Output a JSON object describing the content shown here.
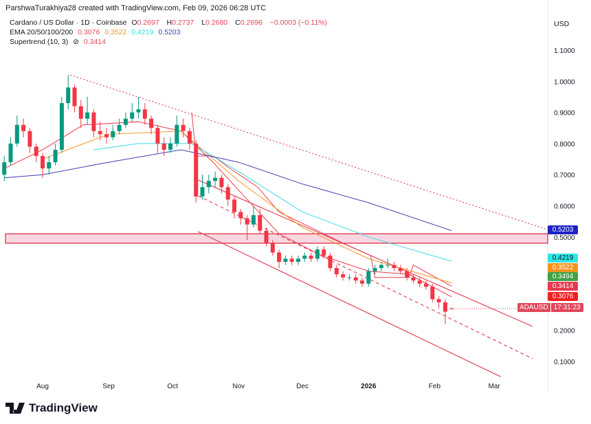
{
  "header": {
    "credit": "ParshwaTurakhiya28 created with TradingView.com, Feb 09, 2026 06:28 UTC",
    "currency": "USD"
  },
  "legend": {
    "symbol": "Cardano / US Dollar · 1D · Coinbase",
    "o_label": "O",
    "o": "0.2697",
    "h_label": "H",
    "h": "0.2737",
    "l_label": "L",
    "l": "0.2680",
    "c_label": "C",
    "c": "0.2696",
    "change": "−0.0003 (−0.11%)",
    "ema_label": "EMA 20/50/100/200",
    "ema20": "0.3076",
    "ema50": "0.3522",
    "ema100": "0.4219",
    "ema200": "0.5203",
    "supertrend_label": "Supertrend (10, 3)",
    "supertrend_icon": "eye-off-icon",
    "supertrend": "0.3414"
  },
  "price_labels": {
    "ema200": {
      "text": "0.5203",
      "color": "#1e22c8"
    },
    "ema100": {
      "text": "0.4219",
      "color": "#2ee6e6"
    },
    "ema50": {
      "text": "0.3522",
      "color": "#f7931a"
    },
    "supertrend_up": {
      "text": "0.3494",
      "color": "#43a047"
    },
    "supertrend": {
      "text": "0.3414",
      "color": "#e53950"
    },
    "ema20": {
      "text": "0.3076",
      "color": "#f21f1f"
    },
    "symbol": {
      "text": "ADAUSD",
      "countdown": "17:31:23",
      "color": "#e0475a"
    }
  },
  "branding": {
    "logo_text": "TradingView"
  },
  "chart_data": {
    "type": "candlestick",
    "title": "Cardano / US Dollar · 1D · Coinbase",
    "y_ticks": [
      "1.1000",
      "1.0000",
      "0.9000",
      "0.8000",
      "0.7000",
      "0.6000",
      "0.5000",
      "0.2000",
      "0.1000"
    ],
    "y_tick_values": [
      1.1,
      1.0,
      0.9,
      0.8,
      0.7,
      0.6,
      0.5,
      0.2,
      0.1
    ],
    "x_ticks": [
      {
        "label": "Aug",
        "date": "2025-08-01"
      },
      {
        "label": "Sep",
        "date": "2025-09-01"
      },
      {
        "label": "Oct",
        "date": "2025-10-01"
      },
      {
        "label": "Nov",
        "date": "2025-11-01"
      },
      {
        "label": "Dec",
        "date": "2025-12-01"
      },
      {
        "label": "2026",
        "date": "2026-01-01",
        "bold": true
      },
      {
        "label": "Feb",
        "date": "2026-02-01"
      },
      {
        "label": "Mar",
        "date": "2026-03-01"
      }
    ],
    "ylim": [
      0.02,
      1.13
    ],
    "up_color": "#089981",
    "down_color": "#f23645",
    "candles": [
      [
        "2025-07-14",
        0.7,
        0.76,
        0.68,
        0.74
      ],
      [
        "2025-07-17",
        0.74,
        0.82,
        0.73,
        0.8
      ],
      [
        "2025-07-20",
        0.8,
        0.89,
        0.79,
        0.86
      ],
      [
        "2025-07-23",
        0.86,
        0.88,
        0.82,
        0.84
      ],
      [
        "2025-07-26",
        0.84,
        0.85,
        0.77,
        0.79
      ],
      [
        "2025-07-29",
        0.79,
        0.8,
        0.74,
        0.76
      ],
      [
        "2025-08-01",
        0.76,
        0.77,
        0.69,
        0.72
      ],
      [
        "2025-08-04",
        0.72,
        0.76,
        0.7,
        0.74
      ],
      [
        "2025-08-07",
        0.74,
        0.8,
        0.73,
        0.78
      ],
      [
        "2025-08-10",
        0.78,
        0.95,
        0.77,
        0.93
      ],
      [
        "2025-08-13",
        0.93,
        1.02,
        0.91,
        0.98
      ],
      [
        "2025-08-16",
        0.98,
        0.99,
        0.9,
        0.92
      ],
      [
        "2025-08-19",
        0.92,
        0.94,
        0.85,
        0.88
      ],
      [
        "2025-08-22",
        0.88,
        0.95,
        0.86,
        0.9
      ],
      [
        "2025-08-25",
        0.9,
        0.91,
        0.82,
        0.84
      ],
      [
        "2025-08-28",
        0.84,
        0.87,
        0.81,
        0.83
      ],
      [
        "2025-08-31",
        0.83,
        0.85,
        0.8,
        0.82
      ],
      [
        "2025-09-03",
        0.82,
        0.86,
        0.81,
        0.84
      ],
      [
        "2025-09-06",
        0.84,
        0.88,
        0.83,
        0.86
      ],
      [
        "2025-09-09",
        0.86,
        0.9,
        0.85,
        0.88
      ],
      [
        "2025-09-12",
        0.88,
        0.93,
        0.87,
        0.9
      ],
      [
        "2025-09-15",
        0.9,
        0.95,
        0.88,
        0.91
      ],
      [
        "2025-09-18",
        0.91,
        0.93,
        0.86,
        0.88
      ],
      [
        "2025-09-21",
        0.88,
        0.89,
        0.83,
        0.85
      ],
      [
        "2025-09-24",
        0.85,
        0.86,
        0.77,
        0.8
      ],
      [
        "2025-09-27",
        0.8,
        0.82,
        0.76,
        0.78
      ],
      [
        "2025-09-30",
        0.78,
        0.82,
        0.77,
        0.8
      ],
      [
        "2025-10-03",
        0.8,
        0.89,
        0.79,
        0.86
      ],
      [
        "2025-10-06",
        0.86,
        0.88,
        0.82,
        0.84
      ],
      [
        "2025-10-09",
        0.84,
        0.85,
        0.78,
        0.8
      ],
      [
        "2025-10-12",
        0.8,
        0.81,
        0.61,
        0.63
      ],
      [
        "2025-10-15",
        0.63,
        0.7,
        0.62,
        0.66
      ],
      [
        "2025-10-18",
        0.66,
        0.7,
        0.64,
        0.68
      ],
      [
        "2025-10-21",
        0.68,
        0.71,
        0.66,
        0.69
      ],
      [
        "2025-10-24",
        0.69,
        0.7,
        0.64,
        0.66
      ],
      [
        "2025-10-27",
        0.66,
        0.67,
        0.6,
        0.62
      ],
      [
        "2025-10-30",
        0.62,
        0.63,
        0.56,
        0.58
      ],
      [
        "2025-11-02",
        0.58,
        0.59,
        0.54,
        0.56
      ],
      [
        "2025-11-05",
        0.56,
        0.57,
        0.49,
        0.54
      ],
      [
        "2025-11-08",
        0.54,
        0.6,
        0.53,
        0.57
      ],
      [
        "2025-11-11",
        0.57,
        0.59,
        0.51,
        0.52
      ],
      [
        "2025-11-14",
        0.52,
        0.53,
        0.47,
        0.48
      ],
      [
        "2025-11-17",
        0.48,
        0.49,
        0.44,
        0.45
      ],
      [
        "2025-11-20",
        0.45,
        0.46,
        0.4,
        0.42
      ],
      [
        "2025-11-23",
        0.42,
        0.44,
        0.41,
        0.43
      ],
      [
        "2025-11-26",
        0.43,
        0.44,
        0.41,
        0.42
      ],
      [
        "2025-11-29",
        0.42,
        0.44,
        0.41,
        0.43
      ],
      [
        "2025-12-02",
        0.43,
        0.45,
        0.42,
        0.44
      ],
      [
        "2025-12-05",
        0.44,
        0.45,
        0.42,
        0.43
      ],
      [
        "2025-12-08",
        0.43,
        0.47,
        0.42,
        0.46
      ],
      [
        "2025-12-11",
        0.46,
        0.47,
        0.43,
        0.44
      ],
      [
        "2025-12-14",
        0.44,
        0.45,
        0.39,
        0.4
      ],
      [
        "2025-12-17",
        0.4,
        0.41,
        0.37,
        0.38
      ],
      [
        "2025-12-20",
        0.38,
        0.39,
        0.36,
        0.37
      ],
      [
        "2025-12-23",
        0.37,
        0.38,
        0.36,
        0.37
      ],
      [
        "2025-12-26",
        0.37,
        0.38,
        0.35,
        0.36
      ],
      [
        "2025-12-29",
        0.36,
        0.37,
        0.34,
        0.35
      ],
      [
        "2026-01-01",
        0.35,
        0.4,
        0.34,
        0.39
      ],
      [
        "2026-01-04",
        0.39,
        0.41,
        0.38,
        0.4
      ],
      [
        "2026-01-07",
        0.4,
        0.42,
        0.39,
        0.41
      ],
      [
        "2026-01-10",
        0.41,
        0.43,
        0.4,
        0.41
      ],
      [
        "2026-01-13",
        0.41,
        0.42,
        0.39,
        0.4
      ],
      [
        "2026-01-16",
        0.4,
        0.41,
        0.38,
        0.39
      ],
      [
        "2026-01-19",
        0.39,
        0.4,
        0.36,
        0.37
      ],
      [
        "2026-01-22",
        0.37,
        0.38,
        0.35,
        0.36
      ],
      [
        "2026-01-25",
        0.36,
        0.37,
        0.34,
        0.35
      ],
      [
        "2026-01-28",
        0.35,
        0.36,
        0.33,
        0.34
      ],
      [
        "2026-01-31",
        0.34,
        0.35,
        0.29,
        0.3
      ],
      [
        "2026-02-03",
        0.3,
        0.31,
        0.27,
        0.29
      ],
      [
        "2026-02-06",
        0.29,
        0.3,
        0.22,
        0.26
      ],
      [
        "2026-02-09",
        0.2697,
        0.2737,
        0.268,
        0.2696
      ]
    ],
    "ema": [
      {
        "name": "EMA 20",
        "color": "#f23645",
        "points": [
          [
            "2025-07-14",
            0.72
          ],
          [
            "2025-08-01",
            0.78
          ],
          [
            "2025-08-20",
            0.86
          ],
          [
            "2025-09-15",
            0.87
          ],
          [
            "2025-10-05",
            0.84
          ],
          [
            "2025-10-20",
            0.74
          ],
          [
            "2025-11-01",
            0.65
          ],
          [
            "2025-11-20",
            0.51
          ],
          [
            "2025-12-10",
            0.44
          ],
          [
            "2026-01-01",
            0.39
          ],
          [
            "2026-01-20",
            0.38
          ],
          [
            "2026-02-09",
            0.3076
          ]
        ]
      },
      {
        "name": "EMA 50",
        "color": "#f7931a",
        "points": [
          [
            "2025-08-01",
            0.75
          ],
          [
            "2025-09-01",
            0.83
          ],
          [
            "2025-10-05",
            0.84
          ],
          [
            "2025-11-01",
            0.68
          ],
          [
            "2025-12-01",
            0.53
          ],
          [
            "2026-01-01",
            0.43
          ],
          [
            "2026-02-09",
            0.3522
          ]
        ]
      },
      {
        "name": "EMA 100",
        "color": "#38d9e8",
        "points": [
          [
            "2025-08-25",
            0.78
          ],
          [
            "2025-09-15",
            0.8
          ],
          [
            "2025-10-10",
            0.8
          ],
          [
            "2025-11-01",
            0.71
          ],
          [
            "2025-12-01",
            0.58
          ],
          [
            "2026-01-01",
            0.5
          ],
          [
            "2026-02-09",
            0.4219
          ]
        ]
      },
      {
        "name": "EMA 200",
        "color": "#3f3fb5",
        "points": [
          [
            "2025-07-14",
            0.69
          ],
          [
            "2025-08-01",
            0.7
          ],
          [
            "2025-09-01",
            0.74
          ],
          [
            "2025-10-05",
            0.78
          ],
          [
            "2025-11-01",
            0.74
          ],
          [
            "2025-12-01",
            0.67
          ],
          [
            "2026-01-01",
            0.61
          ],
          [
            "2026-02-09",
            0.5203
          ]
        ]
      }
    ],
    "supertrend": {
      "color_down": "#e53950",
      "color_up": "#43a047",
      "points": [
        [
          "2025-10-10",
          0.9
        ],
        [
          "2025-10-12",
          0.76
        ],
        [
          "2025-10-20",
          0.76
        ],
        [
          "2025-10-28",
          0.72
        ],
        [
          "2025-11-10",
          0.66
        ],
        [
          "2025-11-20",
          0.58
        ],
        [
          "2025-12-05",
          0.53
        ],
        [
          "2025-12-20",
          0.48
        ],
        [
          "2026-01-02",
          0.44
        ],
        [
          "2026-01-04",
          0.37
        ],
        [
          "2026-01-20",
          0.37
        ],
        [
          "2026-01-22",
          0.41
        ],
        [
          "2026-02-09",
          0.3414
        ]
      ]
    },
    "trendlines": [
      {
        "style": "dotted",
        "color": "#e0475a",
        "from": [
          "2025-08-14",
          1.02
        ],
        "to": [
          "2026-03-25",
          0.526
        ]
      },
      {
        "style": "solid",
        "color": "#e0475a",
        "from": [
          "2025-10-13",
          0.683
        ],
        "to": [
          "2026-03-19",
          0.2126
        ]
      },
      {
        "style": "dashed",
        "color": "#e0475a",
        "from": [
          "2025-10-13",
          0.632
        ],
        "to": [
          "2026-03-19",
          0.109
        ]
      },
      {
        "style": "solid",
        "color": "#e0475a",
        "from": [
          "2025-10-13",
          0.517
        ],
        "to": [
          "2026-03-04",
          0.051
        ]
      }
    ],
    "zone": {
      "low": 0.48,
      "high": 0.51,
      "color": "#e0475a"
    },
    "last_price": 0.2696
  }
}
